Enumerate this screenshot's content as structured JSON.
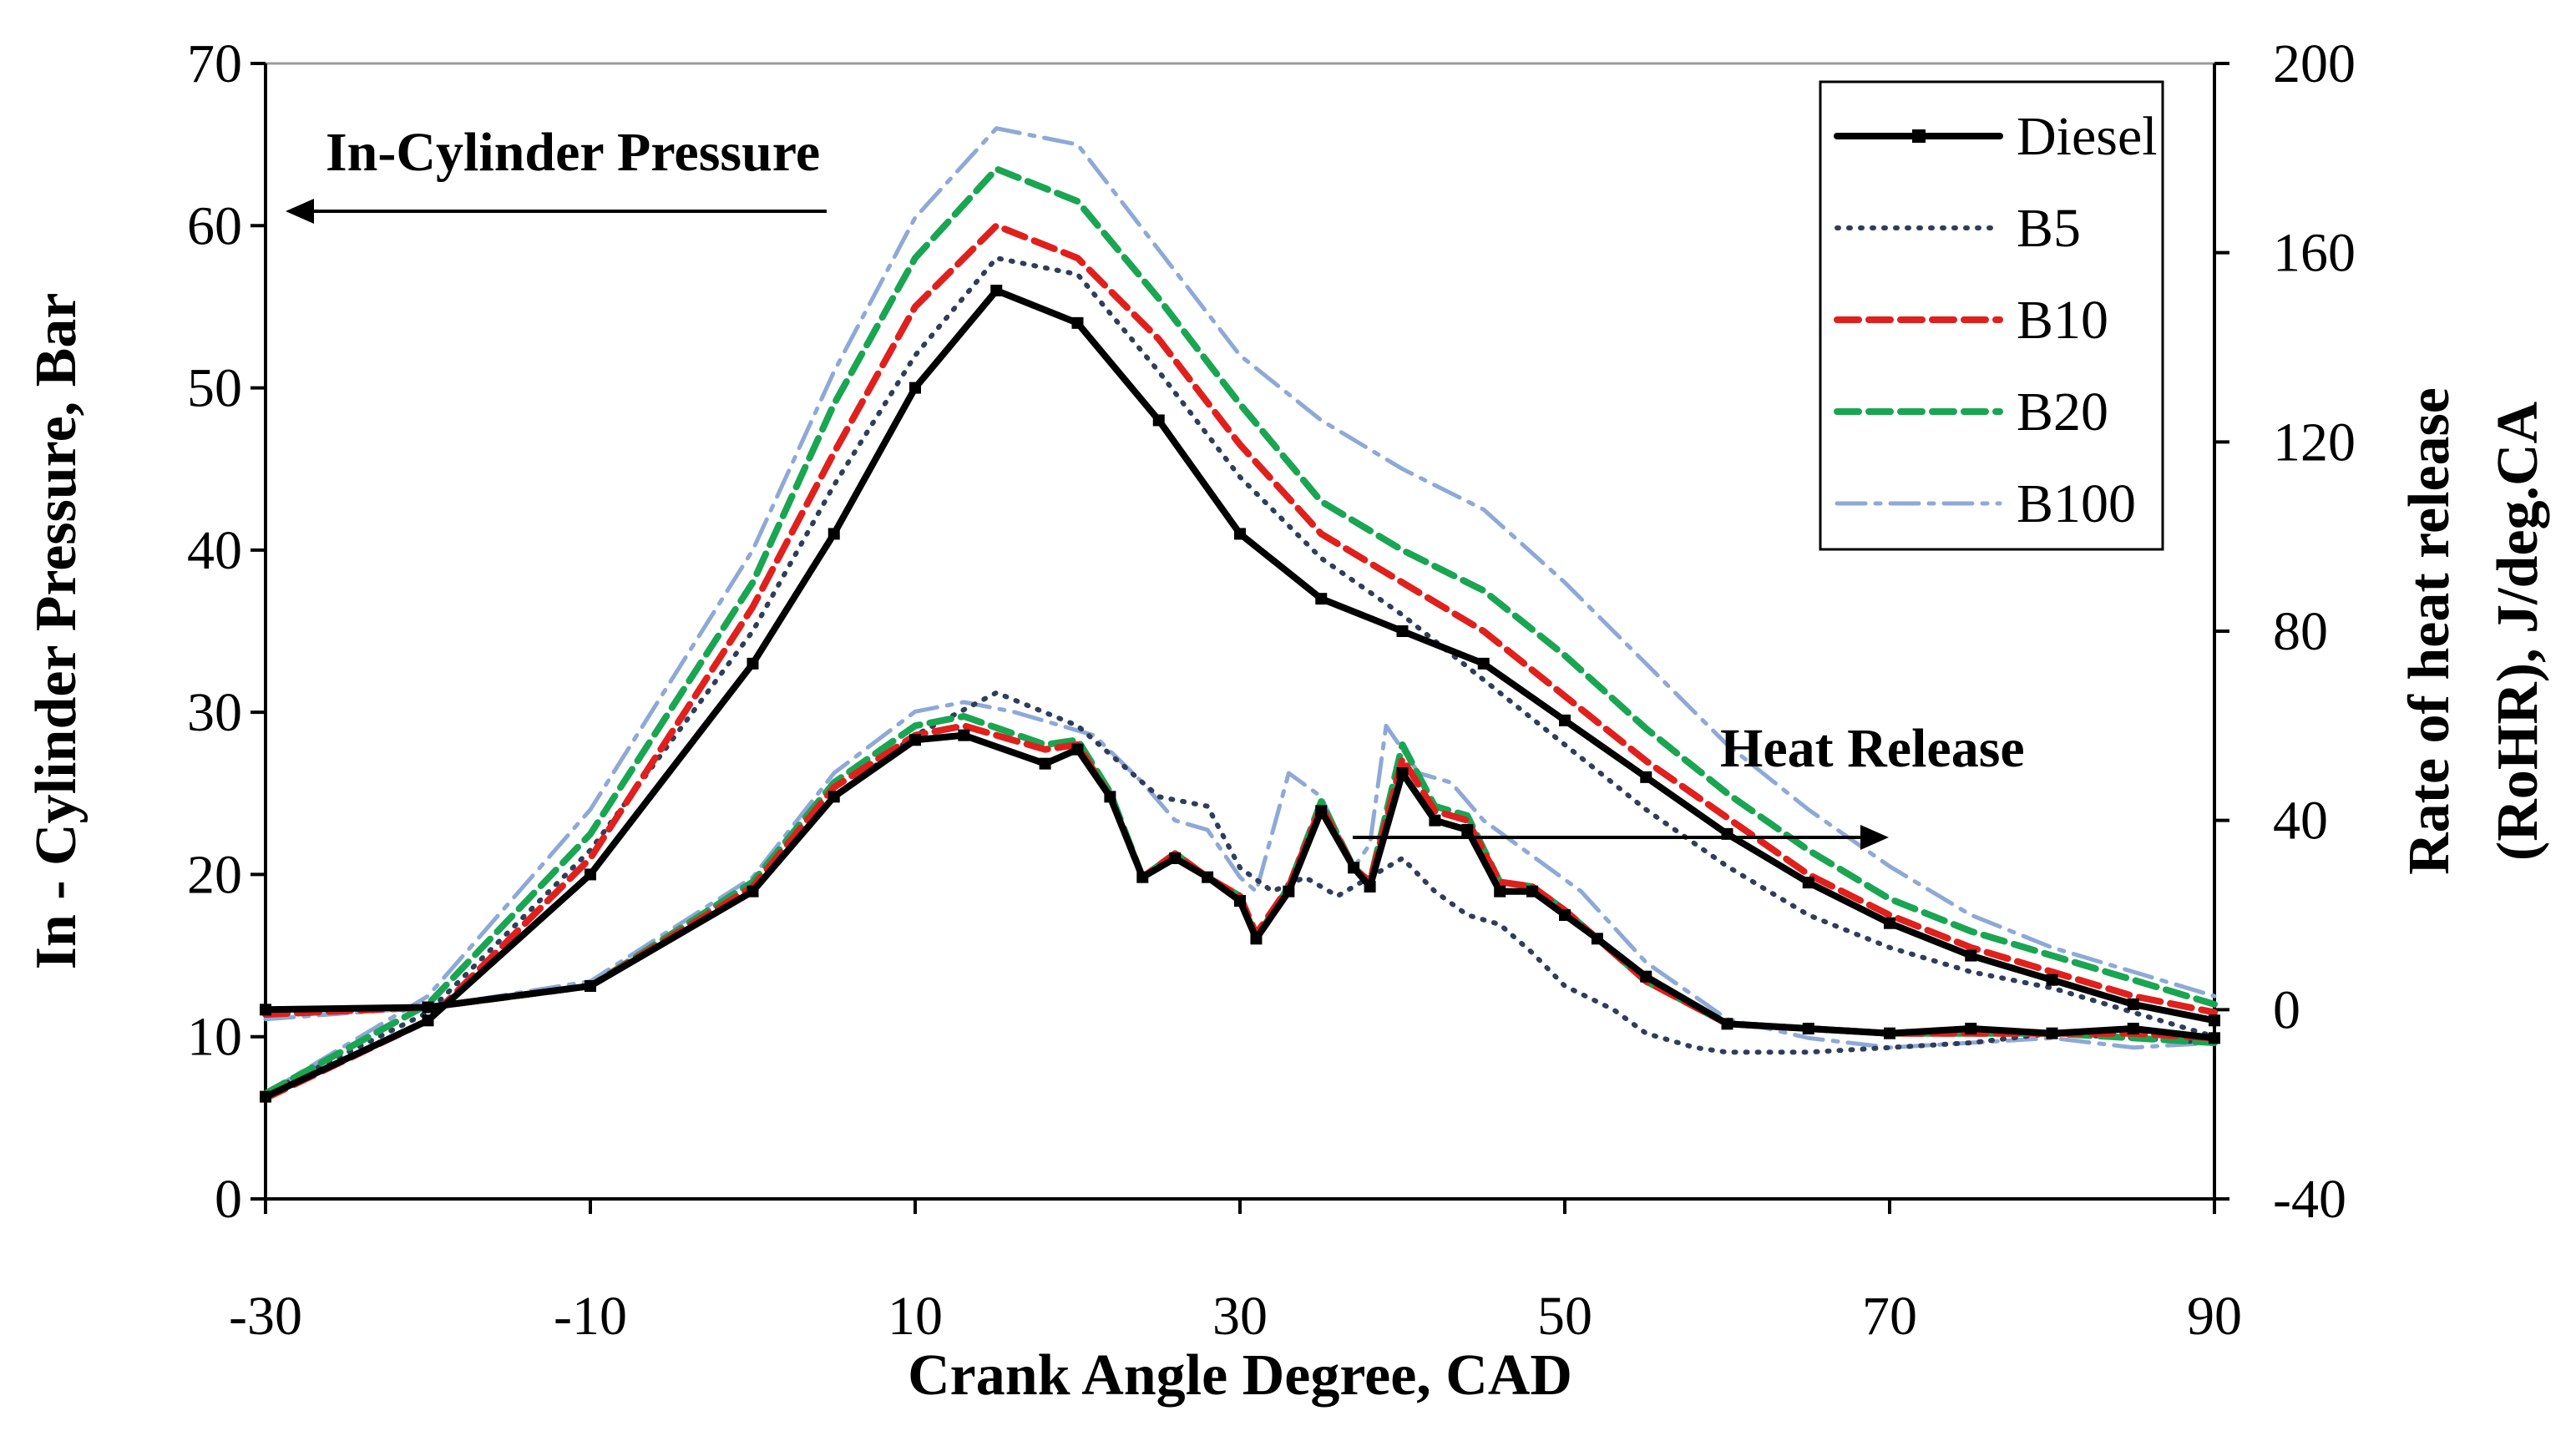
{
  "chart_data": {
    "type": "line",
    "xlabel": "Crank Angle Degree, CAD",
    "ylabel": "In - Cylinder Pressure,  Bar",
    "y2label_lines": [
      "Rate of heat release",
      "(RoHR), J/deg.CA"
    ],
    "xlim": [
      -30,
      90
    ],
    "ylim": [
      0,
      70
    ],
    "y2lim": [
      -40,
      200
    ],
    "xticks": [
      -30,
      -10,
      10,
      30,
      50,
      70,
      90
    ],
    "yticks": [
      0,
      10,
      20,
      30,
      40,
      50,
      60,
      70
    ],
    "y2ticks": [
      -40,
      0,
      40,
      80,
      120,
      160,
      200
    ],
    "grid": false,
    "legend": {
      "position": "top-right",
      "entries": [
        "Diesel",
        "B5",
        "B10",
        "B20",
        "B100"
      ]
    },
    "annotations": [
      {
        "text": "In-Cylinder Pressure",
        "arrow": "left"
      },
      {
        "text": "Heat Release",
        "arrow": "right"
      }
    ],
    "series": [
      {
        "name": "Diesel",
        "color": "#000000",
        "style": "solid-square",
        "pressure": [
          [
            -30,
            6.3
          ],
          [
            -20,
            11
          ],
          [
            -10,
            20
          ],
          [
            0,
            33
          ],
          [
            5,
            41
          ],
          [
            10,
            50
          ],
          [
            15,
            56
          ],
          [
            20,
            54
          ],
          [
            25,
            48
          ],
          [
            30,
            41
          ],
          [
            35,
            37
          ],
          [
            40,
            35
          ],
          [
            45,
            33
          ],
          [
            50,
            29.5
          ],
          [
            55,
            26
          ],
          [
            60,
            22.5
          ],
          [
            65,
            19.5
          ],
          [
            70,
            17
          ],
          [
            75,
            15
          ],
          [
            80,
            13.5
          ],
          [
            85,
            12
          ],
          [
            90,
            11
          ]
        ],
        "heat_release": [
          [
            -30,
            0
          ],
          [
            -20,
            0.5
          ],
          [
            -10,
            5
          ],
          [
            0,
            25
          ],
          [
            5,
            45
          ],
          [
            10,
            57
          ],
          [
            13,
            58
          ],
          [
            18,
            52
          ],
          [
            20,
            55
          ],
          [
            22,
            45
          ],
          [
            24,
            28
          ],
          [
            26,
            32
          ],
          [
            28,
            28
          ],
          [
            30,
            23
          ],
          [
            31,
            15
          ],
          [
            33,
            25
          ],
          [
            35,
            42
          ],
          [
            37,
            30
          ],
          [
            38,
            26
          ],
          [
            40,
            50
          ],
          [
            42,
            40
          ],
          [
            44,
            38
          ],
          [
            46,
            25
          ],
          [
            48,
            25
          ],
          [
            50,
            20
          ],
          [
            52,
            15
          ],
          [
            55,
            7
          ],
          [
            60,
            -3
          ],
          [
            65,
            -4
          ],
          [
            70,
            -5
          ],
          [
            75,
            -4
          ],
          [
            80,
            -5
          ],
          [
            85,
            -4
          ],
          [
            90,
            -6
          ]
        ]
      },
      {
        "name": "B5",
        "color": "#2e3e5a",
        "style": "dotted",
        "pressure": [
          [
            -30,
            6.5
          ],
          [
            -20,
            11.5
          ],
          [
            -10,
            21.5
          ],
          [
            0,
            35
          ],
          [
            5,
            44
          ],
          [
            10,
            52
          ],
          [
            15,
            58
          ],
          [
            20,
            57
          ],
          [
            25,
            51
          ],
          [
            30,
            44.5
          ],
          [
            35,
            39.5
          ],
          [
            40,
            36
          ],
          [
            45,
            32
          ],
          [
            50,
            28
          ],
          [
            55,
            24
          ],
          [
            60,
            20.5
          ],
          [
            65,
            17.5
          ],
          [
            70,
            15.5
          ],
          [
            75,
            14
          ],
          [
            80,
            13
          ],
          [
            85,
            11.5
          ],
          [
            90,
            10
          ]
        ],
        "heat_release": [
          [
            -30,
            0
          ],
          [
            -20,
            0.5
          ],
          [
            -10,
            5
          ],
          [
            0,
            25
          ],
          [
            5,
            45
          ],
          [
            10,
            58
          ],
          [
            15,
            67
          ],
          [
            20,
            60
          ],
          [
            25,
            45
          ],
          [
            28,
            43
          ],
          [
            30,
            30
          ],
          [
            32,
            25
          ],
          [
            34,
            28
          ],
          [
            36,
            24
          ],
          [
            38,
            28
          ],
          [
            40,
            32
          ],
          [
            42,
            25
          ],
          [
            44,
            20
          ],
          [
            46,
            18
          ],
          [
            48,
            12
          ],
          [
            50,
            5
          ],
          [
            53,
            0
          ],
          [
            55,
            -5
          ],
          [
            58,
            -8
          ],
          [
            60,
            -9
          ],
          [
            65,
            -9
          ],
          [
            70,
            -8
          ],
          [
            75,
            -7
          ],
          [
            80,
            -5
          ],
          [
            85,
            -6
          ],
          [
            90,
            -7
          ]
        ]
      },
      {
        "name": "B10",
        "color": "#e0201c",
        "style": "dashed",
        "pressure": [
          [
            -30,
            6.2
          ],
          [
            -20,
            11
          ],
          [
            -10,
            21
          ],
          [
            0,
            36.5
          ],
          [
            5,
            46
          ],
          [
            10,
            55
          ],
          [
            15,
            60
          ],
          [
            20,
            58
          ],
          [
            25,
            53
          ],
          [
            30,
            46.5
          ],
          [
            35,
            41
          ],
          [
            40,
            38
          ],
          [
            45,
            35
          ],
          [
            50,
            31
          ],
          [
            55,
            27
          ],
          [
            60,
            23.5
          ],
          [
            65,
            20
          ],
          [
            70,
            17.5
          ],
          [
            75,
            15.5
          ],
          [
            80,
            14
          ],
          [
            85,
            12.5
          ],
          [
            90,
            11.5
          ]
        ],
        "heat_release": [
          [
            -30,
            -1
          ],
          [
            -20,
            0.5
          ],
          [
            -10,
            5
          ],
          [
            0,
            26
          ],
          [
            5,
            47
          ],
          [
            10,
            58
          ],
          [
            13,
            60
          ],
          [
            18,
            55
          ],
          [
            20,
            56
          ],
          [
            22,
            45
          ],
          [
            24,
            28
          ],
          [
            26,
            33
          ],
          [
            28,
            28
          ],
          [
            30,
            24
          ],
          [
            31,
            16
          ],
          [
            33,
            26
          ],
          [
            35,
            43
          ],
          [
            37,
            30
          ],
          [
            38,
            27
          ],
          [
            40,
            53
          ],
          [
            42,
            42
          ],
          [
            44,
            40
          ],
          [
            46,
            27
          ],
          [
            48,
            26
          ],
          [
            50,
            21
          ],
          [
            52,
            15
          ],
          [
            55,
            6
          ],
          [
            60,
            -3
          ],
          [
            65,
            -4
          ],
          [
            70,
            -5
          ],
          [
            75,
            -5
          ],
          [
            80,
            -5
          ],
          [
            85,
            -5
          ],
          [
            90,
            -6
          ]
        ]
      },
      {
        "name": "B20",
        "color": "#1aa552",
        "style": "dashed",
        "pressure": [
          [
            -30,
            6.5
          ],
          [
            -20,
            12
          ],
          [
            -10,
            22.5
          ],
          [
            0,
            38
          ],
          [
            5,
            49
          ],
          [
            10,
            58
          ],
          [
            15,
            63.5
          ],
          [
            20,
            61.5
          ],
          [
            25,
            55.5
          ],
          [
            30,
            49
          ],
          [
            35,
            43
          ],
          [
            40,
            40
          ],
          [
            45,
            37.5
          ],
          [
            50,
            33.5
          ],
          [
            55,
            29
          ],
          [
            60,
            25
          ],
          [
            65,
            21.5
          ],
          [
            70,
            18.5
          ],
          [
            75,
            16.5
          ],
          [
            80,
            15
          ],
          [
            85,
            13.5
          ],
          [
            90,
            12
          ]
        ],
        "heat_release": [
          [
            -30,
            -1
          ],
          [
            -20,
            0.5
          ],
          [
            -10,
            5
          ],
          [
            0,
            27
          ],
          [
            5,
            48
          ],
          [
            10,
            60
          ],
          [
            13,
            62
          ],
          [
            18,
            56
          ],
          [
            20,
            57
          ],
          [
            22,
            46
          ],
          [
            24,
            28
          ],
          [
            26,
            33
          ],
          [
            28,
            28
          ],
          [
            30,
            24
          ],
          [
            31,
            15
          ],
          [
            33,
            26
          ],
          [
            35,
            44
          ],
          [
            37,
            30
          ],
          [
            38,
            27
          ],
          [
            40,
            56
          ],
          [
            42,
            43
          ],
          [
            44,
            41
          ],
          [
            46,
            27
          ],
          [
            48,
            26
          ],
          [
            50,
            21
          ],
          [
            52,
            15
          ],
          [
            55,
            6
          ],
          [
            60,
            -3
          ],
          [
            65,
            -4
          ],
          [
            70,
            -5
          ],
          [
            75,
            -5
          ],
          [
            80,
            -5
          ],
          [
            85,
            -6
          ],
          [
            90,
            -7
          ]
        ]
      },
      {
        "name": "B100",
        "color": "#8ea9d6",
        "style": "dash-dot",
        "pressure": [
          [
            -30,
            6.5
          ],
          [
            -20,
            12.5
          ],
          [
            -10,
            24
          ],
          [
            0,
            40
          ],
          [
            5,
            51
          ],
          [
            10,
            60.5
          ],
          [
            15,
            66
          ],
          [
            20,
            65
          ],
          [
            25,
            58.5
          ],
          [
            30,
            52
          ],
          [
            35,
            48
          ],
          [
            40,
            45
          ],
          [
            45,
            42.5
          ],
          [
            50,
            38
          ],
          [
            55,
            33
          ],
          [
            60,
            28
          ],
          [
            65,
            24
          ],
          [
            70,
            20.5
          ],
          [
            75,
            17.5
          ],
          [
            80,
            15.5
          ],
          [
            85,
            14
          ],
          [
            90,
            12.5
          ]
        ],
        "heat_release": [
          [
            -30,
            -2
          ],
          [
            -20,
            0.5
          ],
          [
            -10,
            6
          ],
          [
            0,
            28
          ],
          [
            5,
            50
          ],
          [
            10,
            63
          ],
          [
            13,
            65
          ],
          [
            16,
            63
          ],
          [
            19,
            60
          ],
          [
            21,
            58
          ],
          [
            24,
            48
          ],
          [
            26,
            40
          ],
          [
            28,
            38
          ],
          [
            30,
            28
          ],
          [
            31,
            25
          ],
          [
            33,
            50
          ],
          [
            35,
            45
          ],
          [
            37,
            30
          ],
          [
            38,
            35
          ],
          [
            39,
            60
          ],
          [
            41,
            50
          ],
          [
            43,
            48
          ],
          [
            45,
            40
          ],
          [
            47,
            35
          ],
          [
            49,
            30
          ],
          [
            51,
            25
          ],
          [
            55,
            10
          ],
          [
            60,
            -2
          ],
          [
            65,
            -6
          ],
          [
            70,
            -8
          ],
          [
            75,
            -7
          ],
          [
            80,
            -6
          ],
          [
            85,
            -8
          ],
          [
            90,
            -7
          ]
        ]
      }
    ]
  }
}
